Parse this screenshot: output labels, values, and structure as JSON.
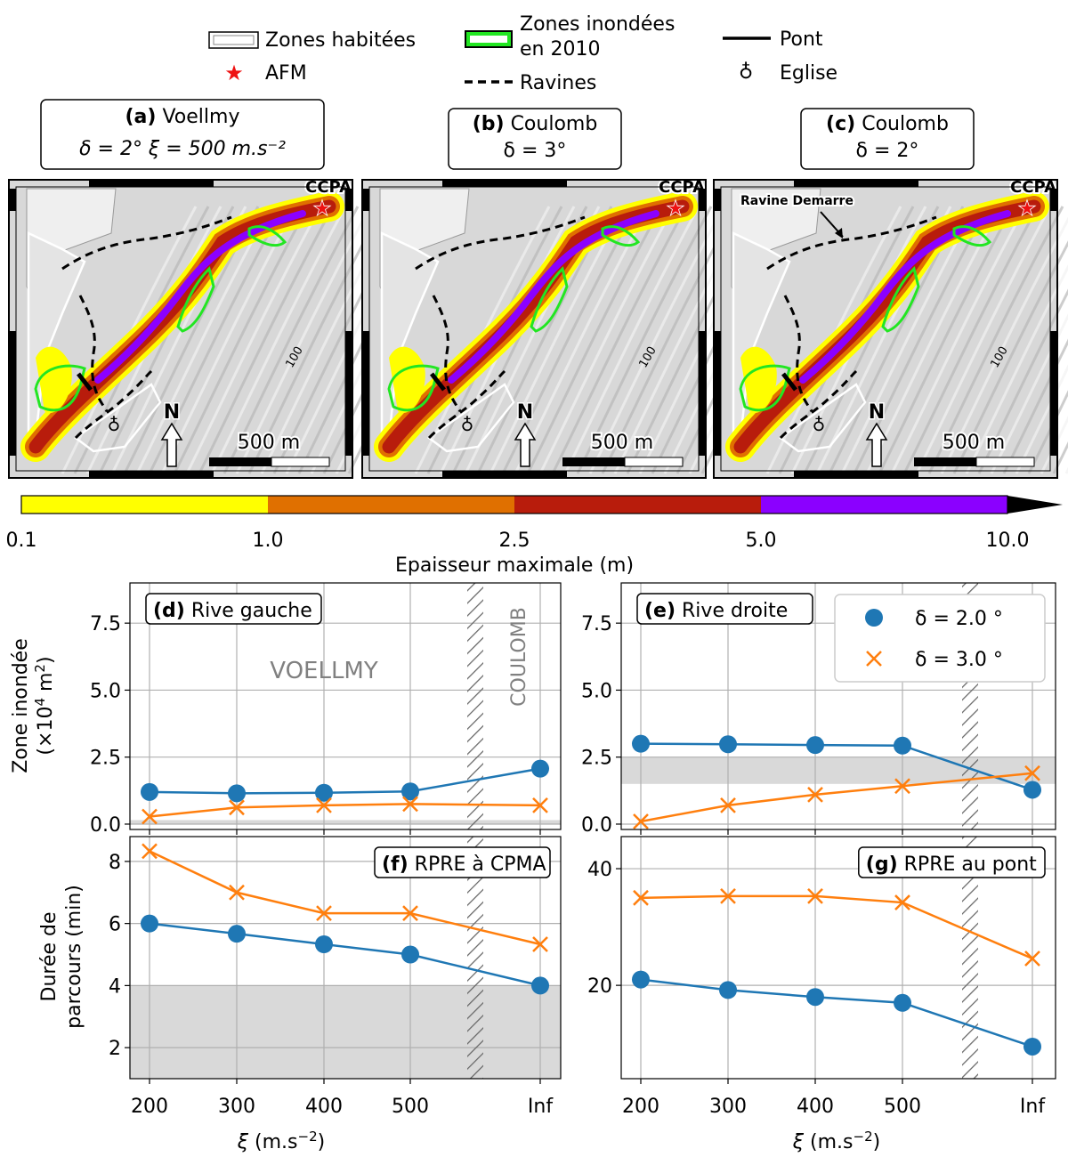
{
  "legend": {
    "inhabited": "Zones habitées",
    "flooded_1": "Zones inondées",
    "flooded_2": "en 2010",
    "bridge": "Pont",
    "afm": "AFM",
    "ravines": "Ravines",
    "church": "Eglise"
  },
  "maps": [
    {
      "panel": "(a)",
      "model": "Voellmy",
      "params": "δ = 2° ξ = 500 m.s⁻²",
      "corner_label": "CCPA",
      "scale": "500 m",
      "north": "N",
      "contour": "100"
    },
    {
      "panel": "(b)",
      "model": "Coulomb",
      "params": "δ = 3°",
      "corner_label": "CCPA",
      "scale": "500 m",
      "north": "N",
      "contour": "100"
    },
    {
      "panel": "(c)",
      "model": "Coulomb",
      "params": "δ = 2°",
      "corner_label": "CCPA",
      "scale": "500 m",
      "north": "N",
      "contour": "100",
      "annotation": "Ravine Demarre"
    }
  ],
  "colorbar": {
    "ticks": [
      "0.1",
      "1.0",
      "2.5",
      "5.0",
      "10.0"
    ],
    "colors": [
      "#ffff00",
      "#e07000",
      "#b81c0c",
      "#8b00ff"
    ],
    "label": "Epaisseur maximale (m)"
  },
  "colors": {
    "delta2": "#1f77b4",
    "delta3": "#ff7f0e",
    "band": "#d9d9d9",
    "grid": "#b0b0b0"
  },
  "chart_data": [
    {
      "type": "line",
      "panel": "(d)",
      "title": "Rive gauche",
      "categories": [
        "200",
        "300",
        "400",
        "500",
        "Inf"
      ],
      "ylabel": "Zone inondée (×10⁴ m²)",
      "ylim": [
        -0.2,
        9.0
      ],
      "yticks": [
        "0.0",
        "2.5",
        "5.0",
        "7.5"
      ],
      "band": [
        0.0,
        0.15
      ],
      "regions": [
        "VOELLMY",
        "COULOMB"
      ],
      "series": [
        {
          "name": "δ = 2.0 °",
          "values": [
            1.2,
            1.15,
            1.17,
            1.22,
            2.07
          ]
        },
        {
          "name": "δ = 3.0 °",
          "values": [
            0.28,
            0.62,
            0.7,
            0.75,
            0.7
          ]
        }
      ]
    },
    {
      "type": "line",
      "panel": "(e)",
      "title": "Rive droite",
      "categories": [
        "200",
        "300",
        "400",
        "500",
        "Inf"
      ],
      "ylim": [
        -0.2,
        9.0
      ],
      "yticks": [
        "0.0",
        "2.5",
        "5.0",
        "7.5"
      ],
      "band": [
        1.5,
        2.5
      ],
      "legend": [
        "δ = 2.0 °",
        "δ = 3.0 °"
      ],
      "series": [
        {
          "name": "δ = 2.0 °",
          "values": [
            3.0,
            2.98,
            2.95,
            2.93,
            1.28
          ]
        },
        {
          "name": "δ = 3.0 °",
          "values": [
            0.1,
            0.7,
            1.1,
            1.42,
            1.9
          ]
        }
      ]
    },
    {
      "type": "line",
      "panel": "(f)",
      "title": "RPRE à CPMA",
      "categories": [
        "200",
        "300",
        "400",
        "500",
        "Inf"
      ],
      "xlabel": "ξ (m.s⁻²)",
      "ylabel": "Durée de parcours (min)",
      "ylim": [
        1.0,
        8.8
      ],
      "yticks": [
        "2",
        "4",
        "6",
        "8"
      ],
      "band": [
        1.0,
        4.0
      ],
      "series": [
        {
          "name": "δ = 2.0 °",
          "values": [
            6.0,
            5.67,
            5.33,
            5.0,
            4.0
          ]
        },
        {
          "name": "δ = 3.0 °",
          "values": [
            8.33,
            7.0,
            6.33,
            6.33,
            5.33
          ]
        }
      ]
    },
    {
      "type": "line",
      "panel": "(g)",
      "title": "RPRE au pont",
      "categories": [
        "200",
        "300",
        "400",
        "500",
        "Inf"
      ],
      "xlabel": "ξ (m.s⁻²)",
      "ylim": [
        4.0,
        45.5
      ],
      "yticks": [
        "20",
        "40"
      ],
      "series": [
        {
          "name": "δ = 2.0 °",
          "values": [
            21.0,
            19.2,
            18.0,
            17.0,
            9.5
          ]
        },
        {
          "name": "δ = 3.0 °",
          "values": [
            35.0,
            35.3,
            35.3,
            34.2,
            24.6
          ]
        }
      ]
    }
  ]
}
